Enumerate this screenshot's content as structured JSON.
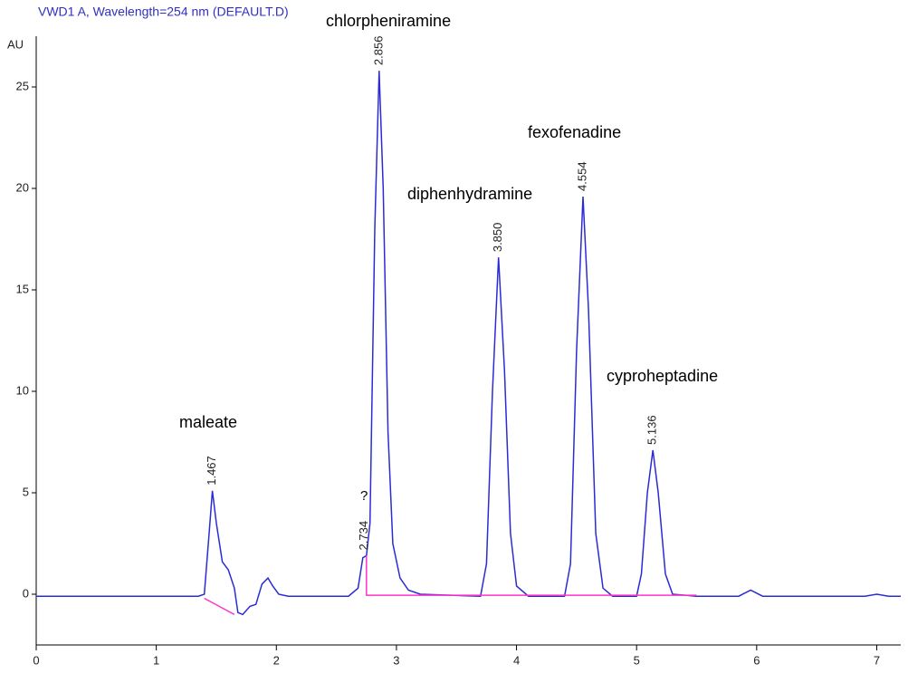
{
  "chart_data": {
    "type": "line",
    "title": "VWD1 A, Wavelength=254 nm (DEFAULT.D)",
    "y_label": "AU",
    "xlim": [
      0,
      7.2
    ],
    "ylim": [
      -2.5,
      27.5
    ],
    "xticks": [
      0,
      1,
      2,
      3,
      4,
      5,
      6,
      7
    ],
    "yticks": [
      0,
      5,
      10,
      15,
      20,
      25
    ],
    "series": [
      {
        "color": "#2b2bd6",
        "x": [
          0,
          1.0,
          1.35,
          1.4,
          1.44,
          1.467,
          1.5,
          1.55,
          1.6,
          1.65,
          1.68,
          1.72,
          1.78,
          1.83,
          1.88,
          1.93,
          1.97,
          2.02,
          2.1,
          2.6,
          2.68,
          2.72,
          2.75,
          2.78,
          2.82,
          2.856,
          2.89,
          2.93,
          2.97,
          3.03,
          3.1,
          3.2,
          3.7,
          3.75,
          3.8,
          3.85,
          3.9,
          3.95,
          4.0,
          4.1,
          4.4,
          4.45,
          4.5,
          4.554,
          4.6,
          4.66,
          4.72,
          4.8,
          5.0,
          5.04,
          5.09,
          5.136,
          5.18,
          5.24,
          5.3,
          5.5,
          5.85,
          5.95,
          6.05,
          6.9,
          7.0,
          7.1,
          7.2
        ],
        "values": [
          -0.1,
          -0.1,
          -0.1,
          0.0,
          3.0,
          5.1,
          3.5,
          1.6,
          1.2,
          0.3,
          -0.9,
          -1.0,
          -0.6,
          -0.5,
          0.5,
          0.8,
          0.4,
          0.0,
          -0.1,
          -0.1,
          0.3,
          1.8,
          1.9,
          3.5,
          18,
          25.8,
          20,
          8,
          2.5,
          0.8,
          0.2,
          0.0,
          -0.1,
          1.5,
          10,
          16.6,
          11,
          3.0,
          0.4,
          -0.1,
          -0.1,
          1.5,
          12,
          19.6,
          14,
          3.0,
          0.3,
          -0.1,
          -0.1,
          1.0,
          5.0,
          7.1,
          5.0,
          1.0,
          0.0,
          -0.1,
          -0.1,
          0.2,
          -0.1,
          -0.1,
          0.0,
          -0.1,
          -0.1
        ]
      },
      {
        "color": "#ff33cc",
        "x": [
          1.4,
          1.65
        ],
        "values": [
          -0.2,
          -1.0
        ]
      },
      {
        "color": "#ff33cc",
        "x": [
          2.75,
          2.75,
          5.5
        ],
        "values": [
          1.9,
          -0.05,
          -0.05
        ]
      }
    ],
    "peaks": [
      {
        "x": 1.467,
        "height": 5.1,
        "label": "1.467",
        "compound": "maleate"
      },
      {
        "x": 2.734,
        "height": 1.9,
        "label": "2.734",
        "compound": "?"
      },
      {
        "x": 2.856,
        "height": 25.8,
        "label": "2.856",
        "compound": "chlorpheniramine"
      },
      {
        "x": 3.85,
        "height": 16.6,
        "label": "3.850",
        "compound": "diphenhydramine"
      },
      {
        "x": 4.554,
        "height": 19.6,
        "label": "4.554",
        "compound": "fexofenadine"
      },
      {
        "x": 5.136,
        "height": 7.1,
        "label": "5.136",
        "compound": "cyproheptadine"
      }
    ]
  }
}
